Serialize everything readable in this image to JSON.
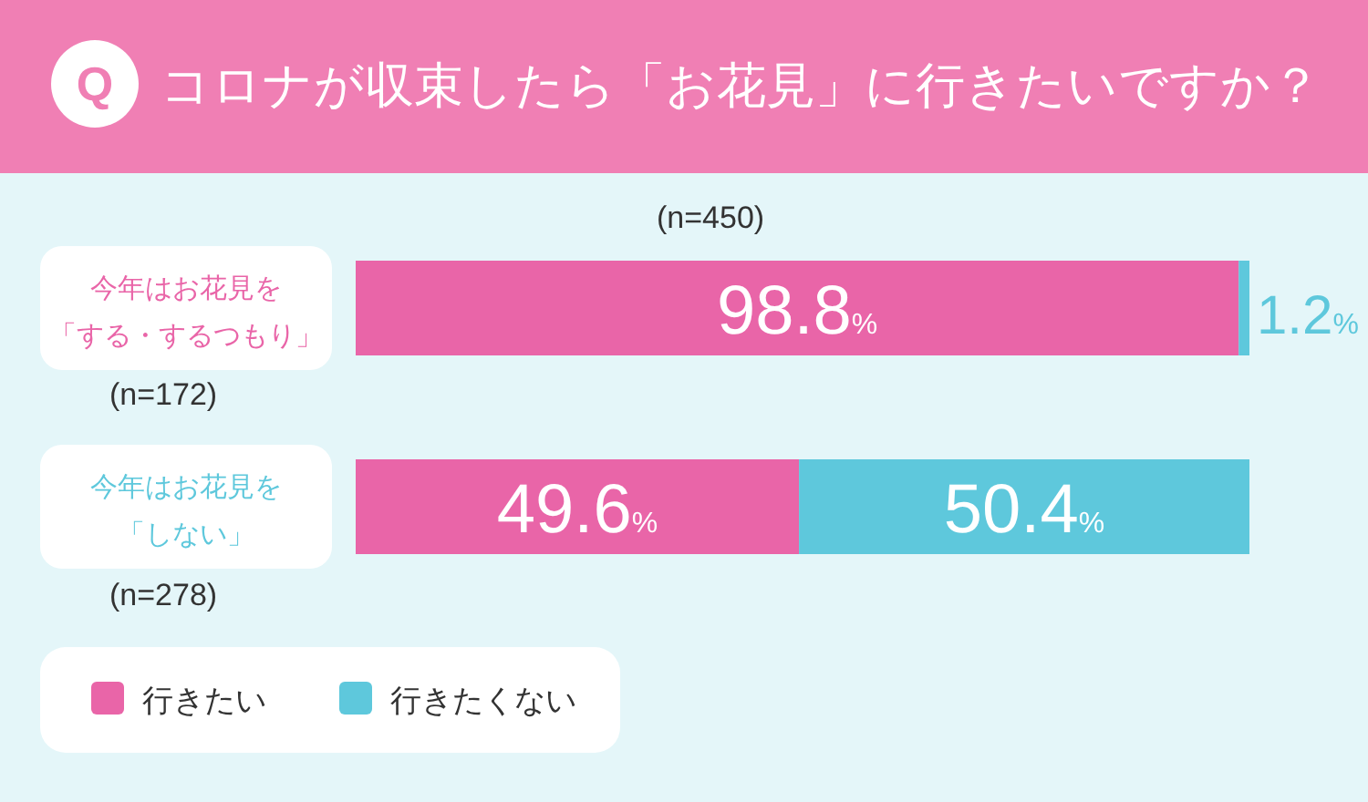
{
  "chart_data": {
    "type": "bar",
    "orientation": "horizontal",
    "stacked": true,
    "title": "コロナが収束したら「お花見」に行きたいですか？",
    "categories": [
      "今年はお花見を「する・するつもり」",
      "今年はお花見を「しない」"
    ],
    "series": [
      {
        "name": "行きたい",
        "color": "#e965a8",
        "values": [
          98.8,
          49.6
        ],
        "value_labels": [
          "98.8%",
          "49.6%"
        ]
      },
      {
        "name": "行きたくない",
        "color": "#5ec8dc",
        "values": [
          1.2,
          50.4
        ],
        "value_labels": [
          "1.2%",
          "50.4%"
        ]
      }
    ],
    "xlim": [
      0,
      100
    ],
    "tick_labels": "y",
    "legend": "bottom left",
    "annotations": [
      "Q",
      "(n=450)",
      "(n=172)",
      "(n=278)"
    ]
  }
}
